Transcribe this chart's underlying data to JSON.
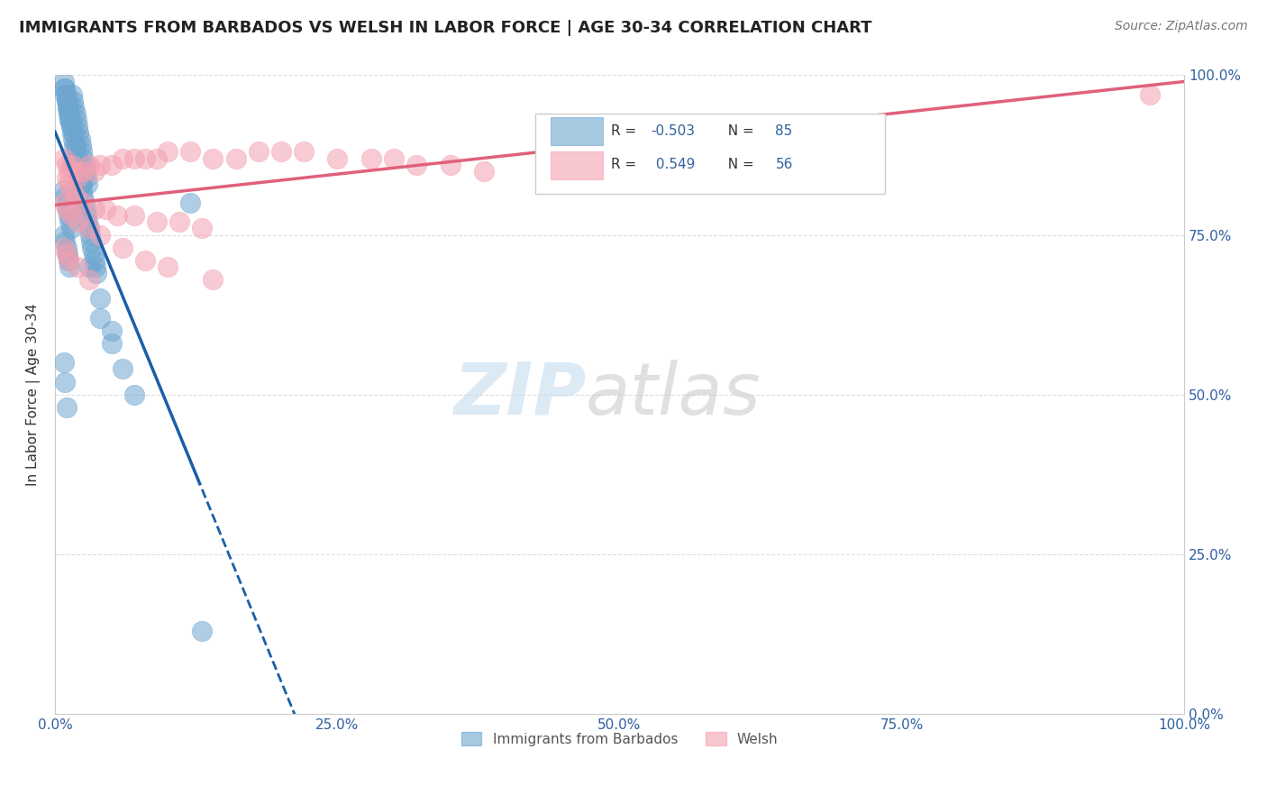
{
  "title": "IMMIGRANTS FROM BARBADOS VS WELSH IN LABOR FORCE | AGE 30-34 CORRELATION CHART",
  "source": "Source: ZipAtlas.com",
  "ylabel": "In Labor Force | Age 30-34",
  "xticklabels": [
    "0.0%",
    "25.0%",
    "50.0%",
    "75.0%",
    "100.0%"
  ],
  "yticklabels_right": [
    "0.0%",
    "25.0%",
    "50.0%",
    "75.0%",
    "100.0%"
  ],
  "xlim": [
    0,
    1
  ],
  "ylim": [
    0,
    1
  ],
  "legend_labels": [
    "Immigrants from Barbados",
    "Welsh"
  ],
  "blue_color": "#6ea6d0",
  "pink_color": "#f4a0b0",
  "blue_line_color": "#1a5fa8",
  "pink_line_color": "#e0607a",
  "R_blue": -0.503,
  "N_blue": 85,
  "R_pink": 0.549,
  "N_pink": 56,
  "background_color": "#ffffff",
  "grid_color": "#dddddd",
  "blue_scatter_x": [
    0.008,
    0.009,
    0.01,
    0.011,
    0.012,
    0.013,
    0.014,
    0.015,
    0.016,
    0.017,
    0.018,
    0.019,
    0.02,
    0.021,
    0.022,
    0.023,
    0.024,
    0.025,
    0.026,
    0.027,
    0.028,
    0.029,
    0.03,
    0.031,
    0.032,
    0.033,
    0.034,
    0.035,
    0.036,
    0.037,
    0.015,
    0.016,
    0.017,
    0.018,
    0.019,
    0.02,
    0.021,
    0.022,
    0.023,
    0.024,
    0.01,
    0.011,
    0.012,
    0.013,
    0.014,
    0.025,
    0.026,
    0.027,
    0.028,
    0.029,
    0.008,
    0.009,
    0.01,
    0.012,
    0.014,
    0.016,
    0.018,
    0.02,
    0.022,
    0.024,
    0.008,
    0.009,
    0.01,
    0.011,
    0.012,
    0.013,
    0.014,
    0.03,
    0.04,
    0.05,
    0.008,
    0.009,
    0.01,
    0.011,
    0.012,
    0.013,
    0.04,
    0.05,
    0.06,
    0.07,
    0.008,
    0.009,
    0.01,
    0.12,
    0.13
  ],
  "blue_scatter_y": [
    0.98,
    0.97,
    0.96,
    0.95,
    0.94,
    0.93,
    0.92,
    0.91,
    0.9,
    0.89,
    0.88,
    0.87,
    0.86,
    0.85,
    0.84,
    0.83,
    0.82,
    0.81,
    0.8,
    0.79,
    0.78,
    0.77,
    0.76,
    0.75,
    0.74,
    0.73,
    0.72,
    0.71,
    0.7,
    0.69,
    0.97,
    0.96,
    0.95,
    0.94,
    0.93,
    0.92,
    0.91,
    0.9,
    0.89,
    0.88,
    0.96,
    0.95,
    0.94,
    0.93,
    0.92,
    0.87,
    0.86,
    0.85,
    0.84,
    0.83,
    0.99,
    0.98,
    0.97,
    0.95,
    0.93,
    0.91,
    0.89,
    0.87,
    0.85,
    0.83,
    0.82,
    0.81,
    0.8,
    0.79,
    0.78,
    0.77,
    0.76,
    0.7,
    0.65,
    0.6,
    0.75,
    0.74,
    0.73,
    0.72,
    0.71,
    0.7,
    0.62,
    0.58,
    0.54,
    0.5,
    0.55,
    0.52,
    0.48,
    0.8,
    0.13
  ],
  "pink_scatter_x": [
    0.008,
    0.01,
    0.012,
    0.015,
    0.018,
    0.02,
    0.025,
    0.03,
    0.035,
    0.04,
    0.05,
    0.06,
    0.07,
    0.08,
    0.09,
    0.1,
    0.12,
    0.14,
    0.16,
    0.18,
    0.2,
    0.22,
    0.25,
    0.28,
    0.3,
    0.32,
    0.35,
    0.38,
    0.01,
    0.012,
    0.015,
    0.018,
    0.025,
    0.035,
    0.045,
    0.055,
    0.07,
    0.09,
    0.11,
    0.13,
    0.008,
    0.01,
    0.015,
    0.02,
    0.03,
    0.04,
    0.06,
    0.08,
    0.1,
    0.14,
    0.008,
    0.01,
    0.012,
    0.02,
    0.03,
    0.97
  ],
  "pink_scatter_y": [
    0.87,
    0.86,
    0.85,
    0.86,
    0.85,
    0.84,
    0.85,
    0.86,
    0.85,
    0.86,
    0.86,
    0.87,
    0.87,
    0.87,
    0.87,
    0.88,
    0.88,
    0.87,
    0.87,
    0.88,
    0.88,
    0.88,
    0.87,
    0.87,
    0.87,
    0.86,
    0.86,
    0.85,
    0.84,
    0.83,
    0.82,
    0.81,
    0.8,
    0.79,
    0.79,
    0.78,
    0.78,
    0.77,
    0.77,
    0.76,
    0.8,
    0.79,
    0.78,
    0.77,
    0.76,
    0.75,
    0.73,
    0.71,
    0.7,
    0.68,
    0.73,
    0.72,
    0.71,
    0.7,
    0.68,
    0.97
  ]
}
